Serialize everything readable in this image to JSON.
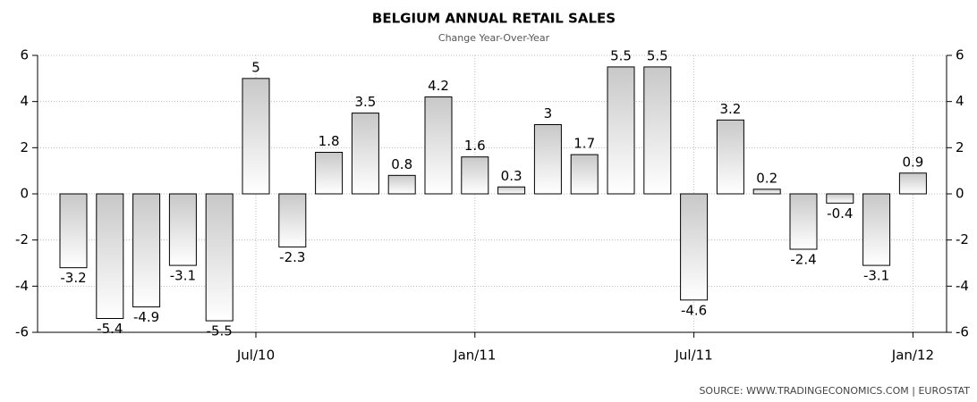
{
  "chart_data": {
    "type": "bar",
    "title": "BELGIUM ANNUAL RETAIL SALES",
    "subtitle": "Change Year-Over-Year",
    "source": "SOURCE:  WWW.TRADINGECONOMICS.COM  |  EUROSTAT",
    "categories": [
      null,
      null,
      null,
      null,
      null,
      "Jul/10",
      null,
      null,
      null,
      null,
      null,
      "Jan/11",
      null,
      null,
      null,
      null,
      null,
      "Jul/11",
      null,
      null,
      null,
      null,
      null,
      "Jan/12"
    ],
    "values": [
      -3.2,
      -5.4,
      -4.9,
      -3.1,
      -5.5,
      5,
      -2.3,
      1.8,
      3.5,
      0.8,
      4.2,
      1.6,
      0.3,
      3,
      1.7,
      5.5,
      5.5,
      -4.6,
      3.2,
      0.2,
      -2.4,
      -0.4,
      -3.1,
      0.9
    ],
    "color": "#c8c8c8",
    "ylim": [
      -6,
      6
    ],
    "yticks": [
      -6,
      -4,
      -2,
      0,
      2,
      4,
      6
    ],
    "grid": true
  }
}
